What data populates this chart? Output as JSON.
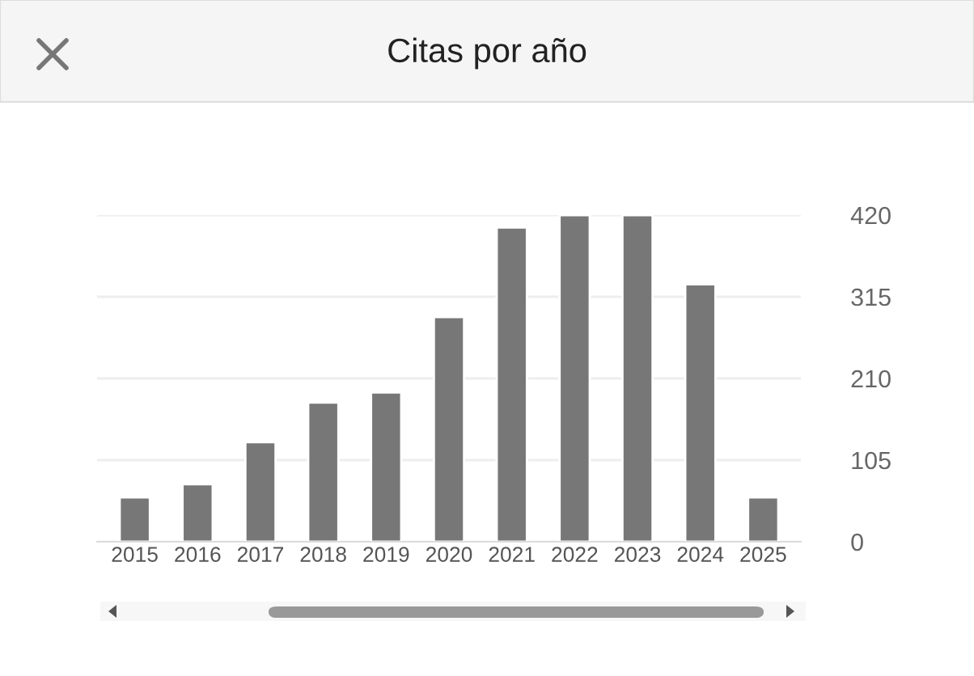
{
  "chart_data": {
    "type": "bar",
    "title": "Citas por año",
    "categories": [
      "2015",
      "2016",
      "2017",
      "2018",
      "2019",
      "2020",
      "2021",
      "2022",
      "2023",
      "2024",
      "2025"
    ],
    "values": [
      57,
      74,
      128,
      179,
      192,
      289,
      404,
      420,
      420,
      331,
      57
    ],
    "color": "#777777",
    "ylim": [
      0,
      420
    ],
    "yticks": [
      0,
      105,
      210,
      315,
      420
    ],
    "grid": "y"
  }
}
